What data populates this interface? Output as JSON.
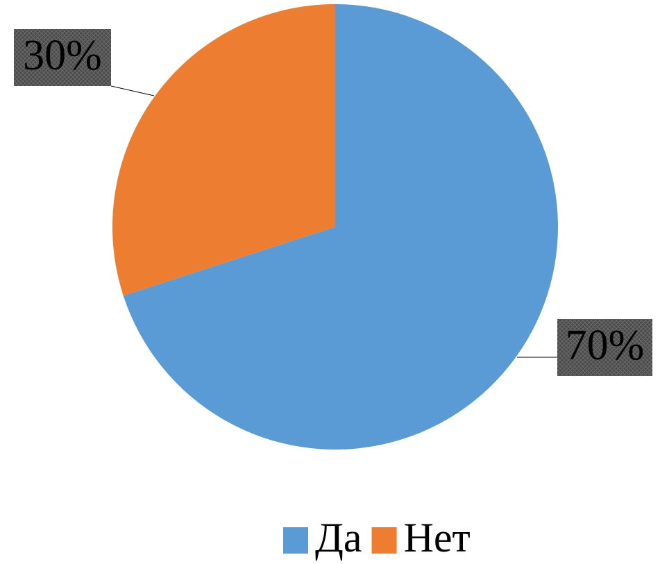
{
  "chart_data": {
    "type": "pie",
    "categories": [
      "Да",
      "Нет"
    ],
    "values": [
      70,
      30
    ],
    "value_labels": [
      "70%",
      "30%"
    ],
    "colors": [
      "#5b9bd5",
      "#ed7d31"
    ],
    "legend": "bottom"
  }
}
